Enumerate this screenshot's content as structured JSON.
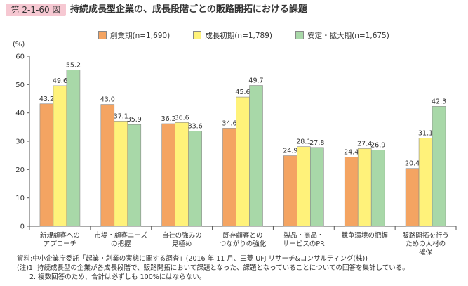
{
  "header": {
    "figure_number": "第 2-1-60 図",
    "title": "持続成長型企業の、成長段階ごとの販路開拓における課題"
  },
  "chart_data": {
    "type": "bar",
    "ylabel": "(%)",
    "ylim": [
      0,
      60
    ],
    "yticks": [
      "0",
      "10",
      "20",
      "30",
      "40",
      "50",
      "60"
    ],
    "grid": false,
    "legend_position": "top",
    "categories": [
      [
        "新規顧客への",
        "アプローチ"
      ],
      [
        "市場・顧客ニーズ",
        "の把握"
      ],
      [
        "自社の強みの",
        "見極め"
      ],
      [
        "既存顧客との",
        "つながりの強化"
      ],
      [
        "製品・商品・",
        "サービスのPR"
      ],
      [
        "競争環境の把握"
      ],
      [
        "販路開拓を行う",
        "ための人材の",
        "確保"
      ]
    ],
    "series": [
      {
        "name": "創業期(n=1,690)",
        "color": "#f4a462",
        "values": [
          43.2,
          43.0,
          36.2,
          34.6,
          24.9,
          24.4,
          20.4
        ]
      },
      {
        "name": "成長初期(n=1,789)",
        "color": "#fff27a",
        "values": [
          49.6,
          37.1,
          36.6,
          45.6,
          28.1,
          27.4,
          31.1
        ]
      },
      {
        "name": "安定・拡大期(n=1,675)",
        "color": "#a8d8a8",
        "values": [
          55.2,
          35.9,
          33.6,
          49.7,
          27.8,
          26.9,
          42.3
        ]
      }
    ]
  },
  "footnotes": {
    "source": "資料:中小企業庁委託「起業・創業の実態に関する調査」(2016 年 11 月、三菱 UFJ リサーチ&コンサルティング(株))",
    "note1": "(注)1. 持続成長型の企業が各成長段階で、販路開拓において課題となった、課題となっていることについての回答を集計している。",
    "note2": "2. 複数回答のため、合計は必ずしも 100%にはならない。"
  }
}
